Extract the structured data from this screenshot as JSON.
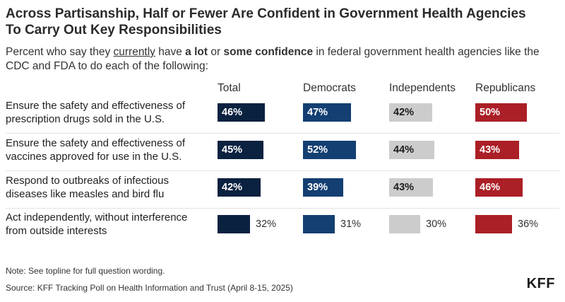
{
  "title_line1": "Across Partisanship, Half or Fewer Are Confident in Government Health Agencies",
  "title_line2": "To Carry Out Key Responsibilities",
  "subtitle": {
    "pre": "Percent who say they ",
    "underlined": "currently",
    "mid": " have ",
    "bold1": "a lot",
    "mid2": " or ",
    "bold2": "some confidence",
    "post": " in federal government health agencies like the CDC and FDA to do each of the following:"
  },
  "colors": {
    "Total": "#0a2140",
    "Democrats": "#133f72",
    "Independents": "#cccccc",
    "Republicans": "#ab1f26"
  },
  "note": "Note: See topline for full question wording.",
  "source": "Source: KFF Tracking Poll on Health Information and Trust (April 8-15, 2025)",
  "logo": "KFF",
  "chart_data": {
    "type": "bar",
    "categories": [
      "Ensure the safety and effectiveness of prescription drugs sold in the U.S.",
      "Ensure the safety and effectiveness of vaccines approved for use in the U.S.",
      "Respond to outbreaks of infectious diseases like measles and bird flu",
      "Act independently, without interference from outside interests"
    ],
    "category_lines": [
      [
        "Ensure the safety and effectiveness of",
        "prescription drugs sold in the U.S."
      ],
      [
        "Ensure the safety and effectiveness of",
        "vaccines approved for use in the U.S."
      ],
      [
        "Respond to outbreaks of infectious",
        "diseases like measles and bird flu"
      ],
      [
        "Act independently, without interference",
        "from outside interests"
      ]
    ],
    "series": [
      {
        "name": "Total",
        "values": [
          46,
          45,
          42,
          32
        ],
        "labels": [
          "46%",
          "45%",
          "42%",
          "32%"
        ]
      },
      {
        "name": "Democrats",
        "values": [
          47,
          52,
          39,
          31
        ],
        "labels": [
          "47%",
          "52%",
          "39%",
          "31%"
        ]
      },
      {
        "name": "Independents",
        "values": [
          42,
          44,
          43,
          30
        ],
        "labels": [
          "42%",
          "44%",
          "43%",
          "30%"
        ]
      },
      {
        "name": "Republicans",
        "values": [
          50,
          43,
          46,
          36
        ],
        "labels": [
          "50%",
          "43%",
          "46%",
          "36%"
        ]
      }
    ],
    "unit": "%"
  }
}
